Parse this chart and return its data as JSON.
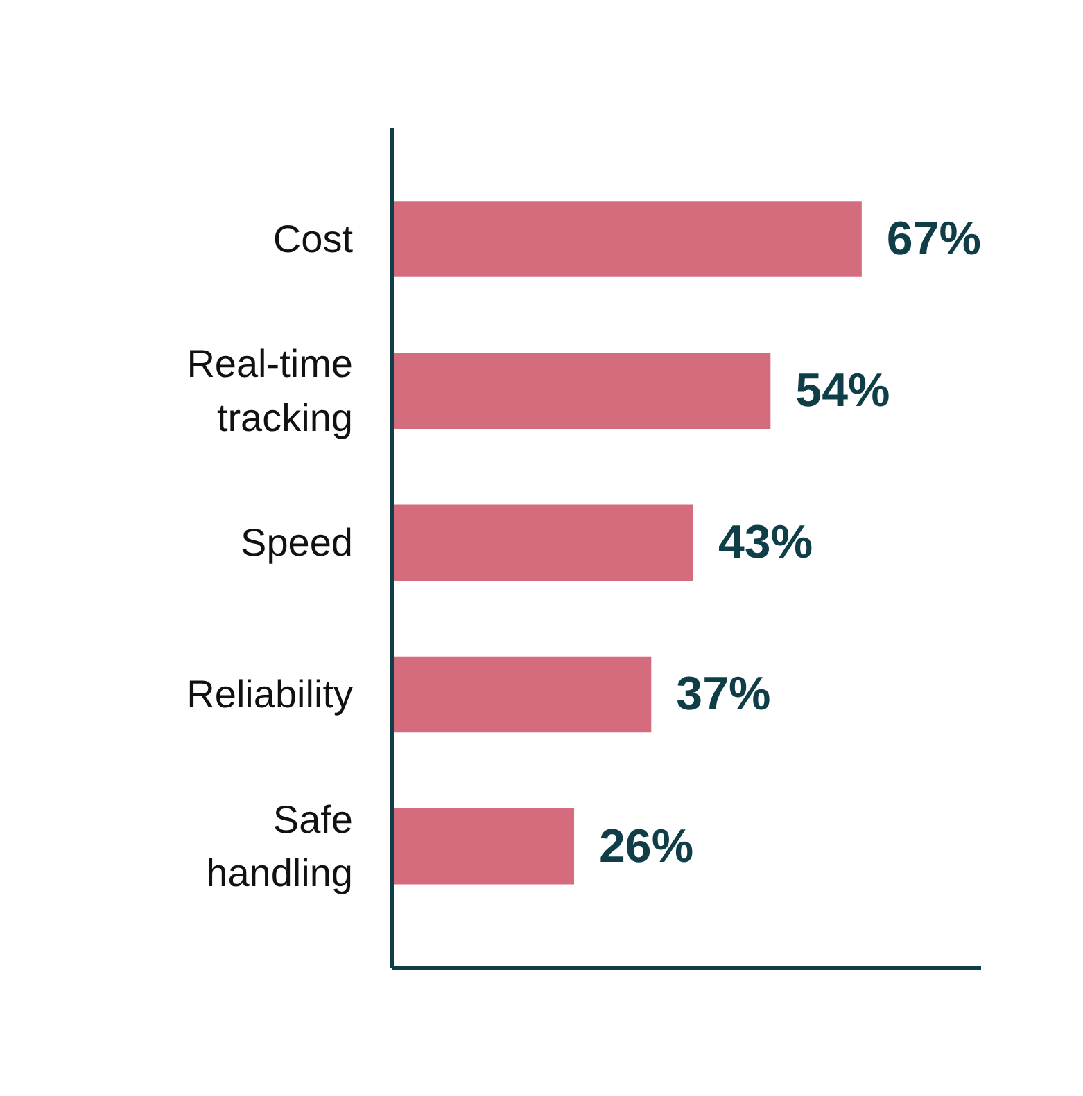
{
  "chart_data": {
    "type": "bar",
    "orientation": "horizontal",
    "categories": [
      "Cost",
      "Real-time tracking",
      "Speed",
      "Reliability",
      "Safe handling"
    ],
    "values": [
      67,
      54,
      43,
      37,
      26
    ],
    "color": "#d46c7e",
    "value_labels": [
      "67%",
      "54%",
      "43%",
      "37%",
      "26%"
    ],
    "tick_labels": "y"
  }
}
